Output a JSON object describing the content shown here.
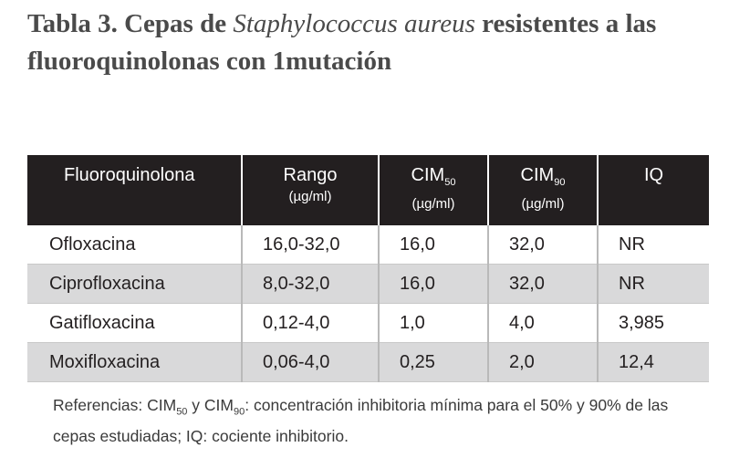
{
  "title": {
    "part1": "Tabla 3. Cepas de ",
    "species": "Staphylococcus aureus",
    "part2": " resistentes a las fluoroquinolonas con 1mutación"
  },
  "table": {
    "headers": [
      {
        "main": "Fluoroquinolona",
        "sub": "",
        "unit": ""
      },
      {
        "main": "Rango",
        "sub": "",
        "unit": "(µg/ml)"
      },
      {
        "main": "CIM",
        "sub": "50",
        "unit": "(µg/ml)"
      },
      {
        "main": "CIM",
        "sub": "90",
        "unit": "(µg/ml)"
      },
      {
        "main": "IQ",
        "sub": "",
        "unit": ""
      }
    ],
    "rows": [
      [
        "Ofloxacina",
        "16,0-32,0",
        "16,0",
        "32,0",
        "NR"
      ],
      [
        "Ciprofloxacina",
        "8,0-32,0",
        "16,0",
        "32,0",
        "NR"
      ],
      [
        "Gatifloxacina",
        "0,12-4,0",
        "1,0",
        "4,0",
        "3,985"
      ],
      [
        "Moxifloxacina",
        "0,06-4,0",
        "0,25",
        "2,0",
        "12,4"
      ]
    ]
  },
  "footnote": {
    "t1": "Referencias: CIM",
    "s1": "50",
    "t2": " y CIM",
    "s2": "90",
    "t3": ": concentración inhibitoria mínima para el 50%  y 90% de las cepas estudiadas; IQ: cociente inhibitorio."
  }
}
